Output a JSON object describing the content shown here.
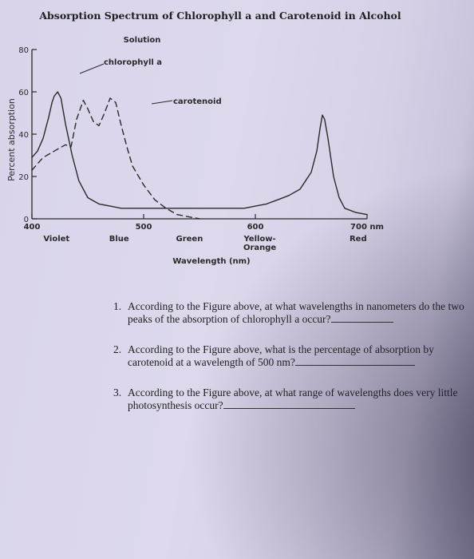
{
  "chart_data": {
    "type": "line",
    "title": "Absorption Spectrum of Chlorophyll a and Carotenoid in Alcohol",
    "legend_title": "Solution",
    "xlabel": "Wavelength (nm)",
    "ylabel": "Percent absorption",
    "xlim": [
      400,
      700
    ],
    "ylim": [
      0,
      80
    ],
    "x_ticks": [
      {
        "value": 400,
        "label": "400"
      },
      {
        "value": 500,
        "label": "500"
      },
      {
        "value": 600,
        "label": "600"
      },
      {
        "value": 700,
        "label": "700 nm"
      }
    ],
    "y_ticks": [
      {
        "value": 0,
        "label": "0"
      },
      {
        "value": 20,
        "label": "20"
      },
      {
        "value": 40,
        "label": "40"
      },
      {
        "value": 60,
        "label": "60"
      },
      {
        "value": 80,
        "label": "80"
      }
    ],
    "color_bands": [
      {
        "x": 422,
        "lines": [
          "Violet"
        ]
      },
      {
        "x": 478,
        "lines": [
          "Blue"
        ]
      },
      {
        "x": 541,
        "lines": [
          "Green"
        ]
      },
      {
        "x": 604,
        "lines": [
          "Yellow-",
          "Orange"
        ]
      },
      {
        "x": 692,
        "lines": [
          "Red"
        ]
      }
    ],
    "series": [
      {
        "name": "chlorophyll a",
        "style": "solid",
        "x": [
          400,
          405,
          410,
          415,
          418,
          420,
          423,
          426,
          430,
          436,
          442,
          450,
          460,
          470,
          480,
          490,
          500,
          510,
          520,
          530,
          540,
          550,
          560,
          570,
          580,
          590,
          600,
          610,
          620,
          630,
          640,
          650,
          655,
          658,
          660,
          662,
          665,
          670,
          675,
          680,
          690,
          700
        ],
        "y": [
          29,
          32,
          38,
          48,
          55,
          58,
          60,
          57,
          45,
          30,
          18,
          10,
          7,
          6,
          5,
          5,
          5,
          5,
          5,
          5,
          5,
          5,
          5,
          5,
          5,
          5,
          6,
          7,
          9,
          11,
          14,
          22,
          32,
          43,
          49,
          47,
          38,
          20,
          10,
          5,
          3,
          2
        ]
      },
      {
        "name": "carotenoid",
        "style": "dashed",
        "x": [
          400,
          410,
          420,
          430,
          435,
          440,
          446,
          450,
          455,
          460,
          465,
          470,
          475,
          480,
          485,
          490,
          500,
          510,
          520,
          530,
          540,
          550
        ],
        "y": [
          23,
          29,
          32,
          35,
          34,
          47,
          56,
          52,
          46,
          44,
          50,
          57,
          55,
          44,
          34,
          25,
          16,
          9,
          5,
          2,
          1,
          0
        ]
      }
    ]
  },
  "questions": [
    {
      "num": "1.",
      "text": "According to the Figure above, at what wavelengths in nanometers do the two peaks of the absorption of chlorophyll a occur?"
    },
    {
      "num": "2.",
      "text": "According to the Figure above, what is the percentage of absorption by carotenoid at a wavelength of 500 nm?"
    },
    {
      "num": "3.",
      "text": "According to the Figure above, at what range of wavelengths does very little photosynthesis occur?"
    }
  ]
}
